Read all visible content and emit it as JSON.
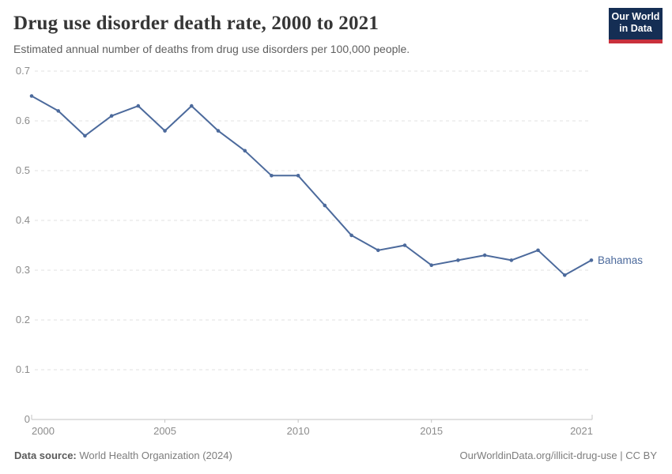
{
  "header": {
    "title": "Drug use disorder death rate, 2000 to 2021",
    "subtitle": "Estimated annual number of deaths from drug use disorders per 100,000 people.",
    "logo": {
      "line1": "Our World",
      "line2": "in Data"
    }
  },
  "chart_data": {
    "type": "line",
    "title": "Drug use disorder death rate, 2000 to 2021",
    "xlabel": "",
    "ylabel": "",
    "x": [
      2000,
      2001,
      2002,
      2003,
      2004,
      2005,
      2006,
      2007,
      2008,
      2009,
      2010,
      2011,
      2012,
      2013,
      2014,
      2015,
      2016,
      2017,
      2018,
      2019,
      2020,
      2021
    ],
    "series": [
      {
        "name": "Bahamas",
        "color": "#4c6a9c",
        "values": [
          0.65,
          0.62,
          0.57,
          0.61,
          0.63,
          0.58,
          0.63,
          0.58,
          0.54,
          0.49,
          0.49,
          0.43,
          0.37,
          0.34,
          0.35,
          0.31,
          0.32,
          0.33,
          0.32,
          0.34,
          0.29,
          0.32
        ]
      }
    ],
    "ylim": [
      0,
      0.7
    ],
    "yticks": [
      0,
      0.1,
      0.2,
      0.3,
      0.4,
      0.5,
      0.6,
      0.7
    ],
    "ytick_labels": [
      "0",
      "0.1",
      "0.2",
      "0.3",
      "0.4",
      "0.5",
      "0.6",
      "0.7"
    ],
    "xticks": [
      2000,
      2005,
      2010,
      2015,
      2021
    ],
    "xtick_labels": [
      "2000",
      "2005",
      "2010",
      "2015",
      "2021"
    ],
    "grid": "horizontal-dashed",
    "legend_position": "line-end-label"
  },
  "footer": {
    "data_source_label": "Data source:",
    "data_source_value": " World Health Organization (2024)",
    "attribution": "OurWorldinData.org/illicit-drug-use | CC BY"
  },
  "colors": {
    "logo_background": "#152e54",
    "logo_accent": "#c9303c",
    "series_line": "#4c6a9c"
  }
}
